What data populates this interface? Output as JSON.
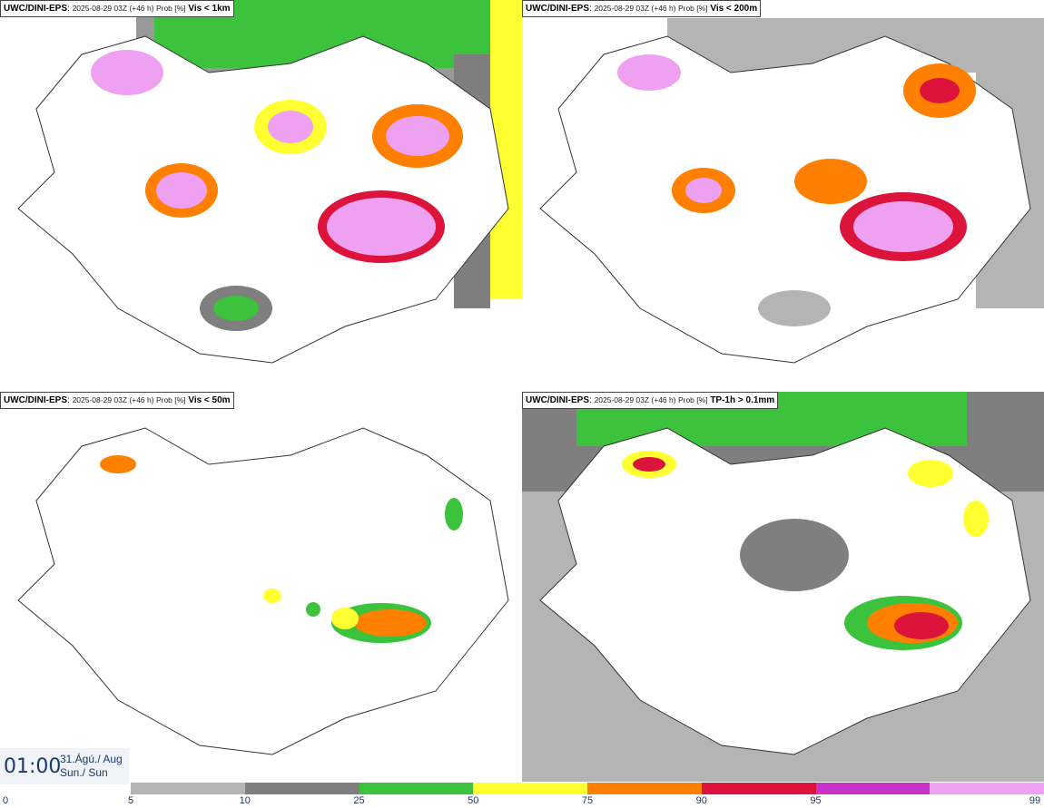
{
  "panels": [
    {
      "source": "UWC/DINI-EPS",
      "meta": "2025-08-29 03Z (+46 h) Prob [%]",
      "variable": "Vis < 1km"
    },
    {
      "source": "UWC/DINI-EPS",
      "meta": "2025-08-29 03Z (+46 h) Prob [%]",
      "variable": "Vis < 200m"
    },
    {
      "source": "UWC/DINI-EPS",
      "meta": "2025-08-29 03Z (+46 h) Prob [%]",
      "variable": "Vis < 50m"
    },
    {
      "source": "UWC/DINI-EPS",
      "meta": "2025-08-29 03Z (+46 h) Prob [%]",
      "variable": "TP-1h > 0.1mm"
    }
  ],
  "valid_time": {
    "time": "01:00",
    "date_line1": "31.Ágú./ Aug",
    "date_line2": "Sun./ Sun"
  },
  "colorbar": {
    "ticks": [
      "0",
      "5",
      "10",
      "25",
      "50",
      "75",
      "90",
      "95",
      "99"
    ],
    "colors": [
      "#ffffff",
      "#b4b4b4",
      "#7f7f7f",
      "#3cc23c",
      "#ffff32",
      "#ff7f00",
      "#dc143c",
      "#c832c8",
      "#f0a0f0"
    ]
  }
}
